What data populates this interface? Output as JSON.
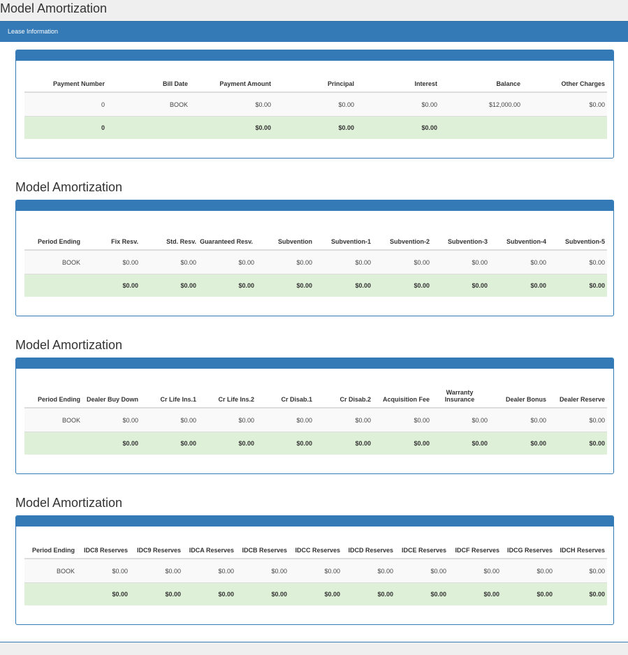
{
  "page": {
    "title": "Model Amortization",
    "lease_bar_label": "Lease Information"
  },
  "sections": [
    {
      "title": "",
      "headers": [
        "Payment Number",
        "Bill Date",
        "Payment Amount",
        "Principal",
        "Interest",
        "Balance",
        "Other Charges"
      ],
      "data_row": [
        "0",
        "BOOK",
        "$0.00",
        "$0.00",
        "$0.00",
        "$12,000.00",
        "$0.00"
      ],
      "total_row": [
        "0",
        "",
        "$0.00",
        "$0.00",
        "$0.00",
        "",
        ""
      ]
    },
    {
      "title": "Model Amortization",
      "headers": [
        "Period Ending",
        "Fix Resv.",
        "Std. Resv.",
        "Guaranteed Resv.",
        "Subvention",
        "Subvention-1",
        "Subvention-2",
        "Subvention-3",
        "Subvention-4",
        "Subvention-5"
      ],
      "data_row": [
        "BOOK",
        "$0.00",
        "$0.00",
        "$0.00",
        "$0.00",
        "$0.00",
        "$0.00",
        "$0.00",
        "$0.00",
        "$0.00"
      ],
      "total_row": [
        "",
        "$0.00",
        "$0.00",
        "$0.00",
        "$0.00",
        "$0.00",
        "$0.00",
        "$0.00",
        "$0.00",
        "$0.00"
      ]
    },
    {
      "title": "Model Amortization",
      "headers": [
        "Period Ending",
        "Dealer Buy Down",
        "Cr Life Ins.1",
        "Cr Life Ins.2",
        "Cr Disab.1",
        "Cr Disab.2",
        "Acquisition Fee",
        "Warranty Insurance",
        "Dealer Bonus",
        "Dealer Reserve"
      ],
      "data_row": [
        "BOOK",
        "$0.00",
        "$0.00",
        "$0.00",
        "$0.00",
        "$0.00",
        "$0.00",
        "$0.00",
        "$0.00",
        "$0.00"
      ],
      "total_row": [
        "",
        "$0.00",
        "$0.00",
        "$0.00",
        "$0.00",
        "$0.00",
        "$0.00",
        "$0.00",
        "$0.00",
        "$0.00"
      ]
    },
    {
      "title": "Model Amortization",
      "headers": [
        "Period Ending",
        "IDC8 Reserves",
        "IDC9 Reserves",
        "IDCA Reserves",
        "IDCB Reserves",
        "IDCC Reserves",
        "IDCD Reserves",
        "IDCE Reserves",
        "IDCF Reserves",
        "IDCG Reserves",
        "IDCH Reserves"
      ],
      "data_row": [
        "BOOK",
        "$0.00",
        "$0.00",
        "$0.00",
        "$0.00",
        "$0.00",
        "$0.00",
        "$0.00",
        "$0.00",
        "$0.00",
        "$0.00"
      ],
      "total_row": [
        "",
        "$0.00",
        "$0.00",
        "$0.00",
        "$0.00",
        "$0.00",
        "$0.00",
        "$0.00",
        "$0.00",
        "$0.00",
        "$0.00"
      ]
    }
  ]
}
